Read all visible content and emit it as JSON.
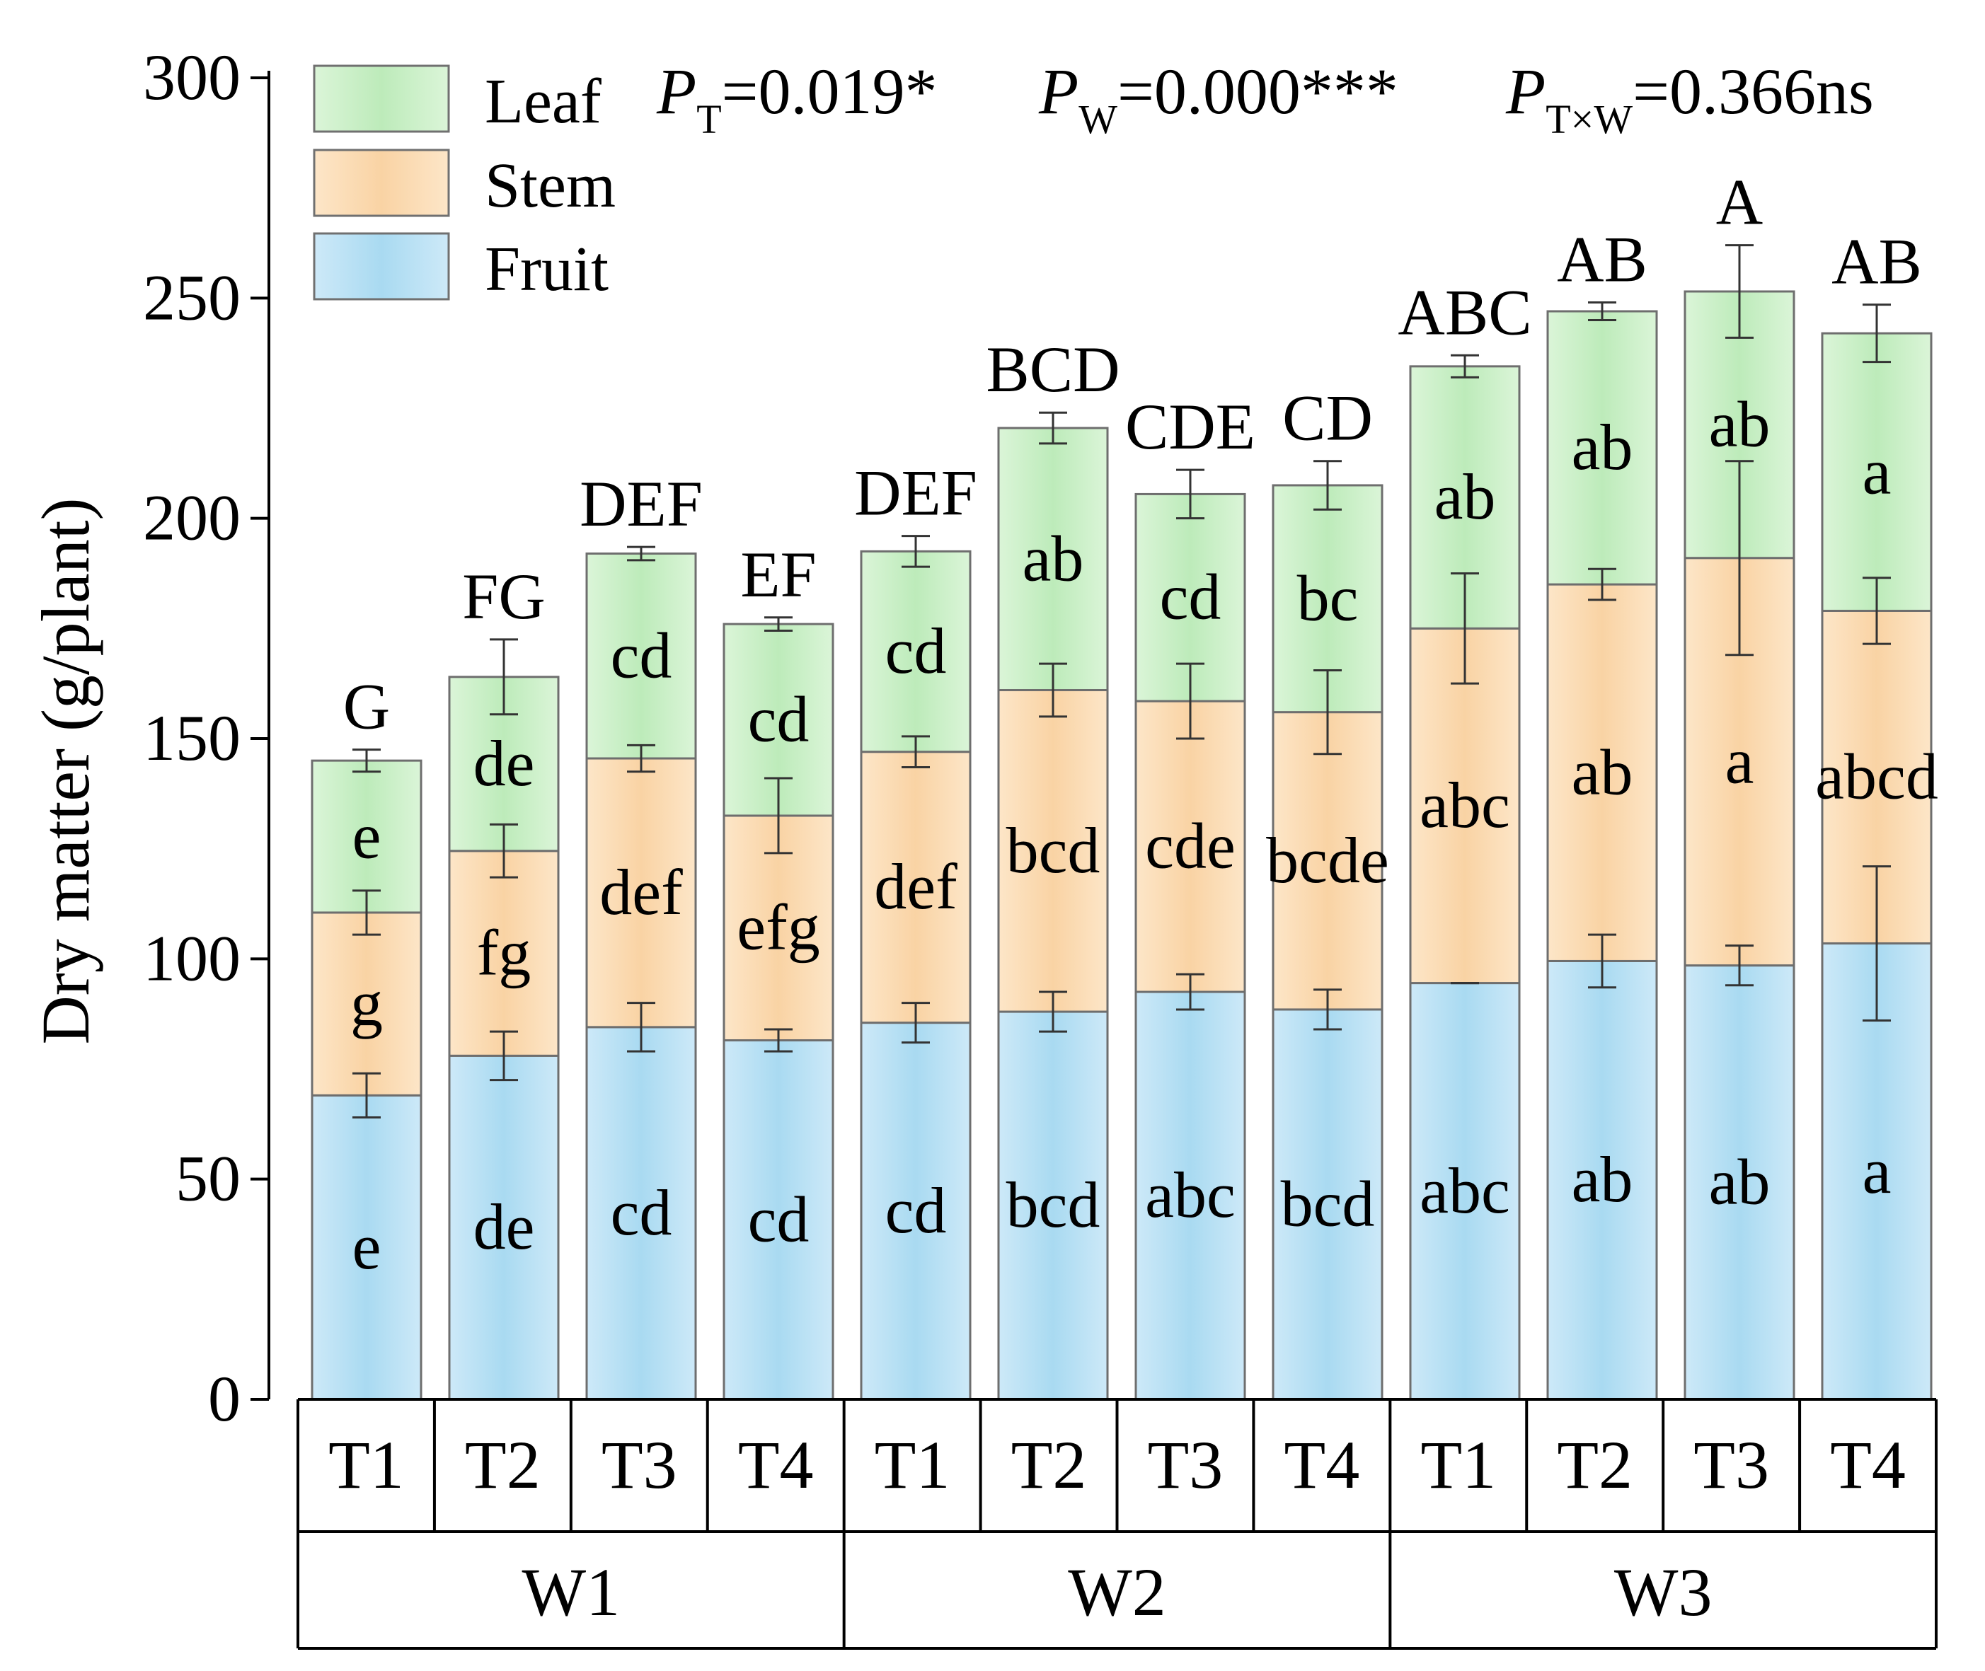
{
  "chart_data": {
    "type": "stacked-bar",
    "title": "",
    "ylabel": "Dry matter (g/plant)",
    "xlabel": "",
    "ylim": [
      0,
      300
    ],
    "yticks": [
      0,
      50,
      100,
      150,
      200,
      250,
      300
    ],
    "groups": [
      "W1",
      "W2",
      "W3"
    ],
    "categories": [
      "T1",
      "T2",
      "T3",
      "T4",
      "T1",
      "T2",
      "T3",
      "T4",
      "T1",
      "T2",
      "T3",
      "T4"
    ],
    "series": [
      {
        "name": "Fruit",
        "color": "#b3def3",
        "values": [
          69,
          78,
          84.5,
          81.5,
          85.5,
          88,
          92.5,
          88.5,
          94.5,
          99.5,
          98.5,
          103.5
        ],
        "errors": [
          5,
          5.5,
          5.5,
          2.5,
          4.5,
          4.5,
          4,
          4.5,
          0,
          6,
          4.5,
          17.5
        ],
        "letters": [
          "e",
          "de",
          "cd",
          "cd",
          "cd",
          "bcd",
          "abc",
          "bcd",
          "abc",
          "ab",
          "ab",
          "a"
        ]
      },
      {
        "name": "Stem",
        "color": "#fbdcb4",
        "values": [
          41.5,
          46.5,
          61,
          51,
          61.5,
          73,
          66,
          67.5,
          80.5,
          85.5,
          92.5,
          75.5
        ],
        "errors": [
          5,
          6,
          3,
          8.5,
          3.5,
          6,
          8.5,
          9.5,
          12.5,
          3.5,
          22,
          7.5
        ],
        "letters": [
          "g",
          "fg",
          "def",
          "efg",
          "def",
          "bcd",
          "cde",
          "bcde",
          "abc",
          "ab",
          "a",
          "abcd"
        ]
      },
      {
        "name": "Leaf",
        "color": "#c8efc6",
        "values": [
          34.5,
          39.5,
          46.5,
          43.5,
          45.5,
          59.5,
          47,
          51.5,
          59.5,
          62,
          60.5,
          63
        ],
        "errors": [
          2.5,
          8.5,
          1.5,
          1.5,
          3.5,
          3.5,
          5.5,
          5.5,
          2.5,
          2,
          10.5,
          6.5
        ],
        "letters": [
          "e",
          "de",
          "cd",
          "cd",
          "cd",
          "ab",
          "cd",
          "bc",
          "ab",
          "ab",
          "ab",
          "a"
        ]
      }
    ],
    "total_letters": [
      "G",
      "FG",
      "DEF",
      "EF",
      "DEF",
      "BCD",
      "CDE",
      "CD",
      "ABC",
      "AB",
      "A",
      "AB"
    ],
    "legend": [
      "Leaf",
      "Stem",
      "Fruit"
    ],
    "legend_position": "top-left",
    "annotation": {
      "p": "P",
      "t_sub": "T",
      "t_val": "=0.019*",
      "w_sub": "W",
      "w_val": "=0.000***",
      "tw_sub": "T×W",
      "tw_val": "=0.366ns"
    }
  }
}
